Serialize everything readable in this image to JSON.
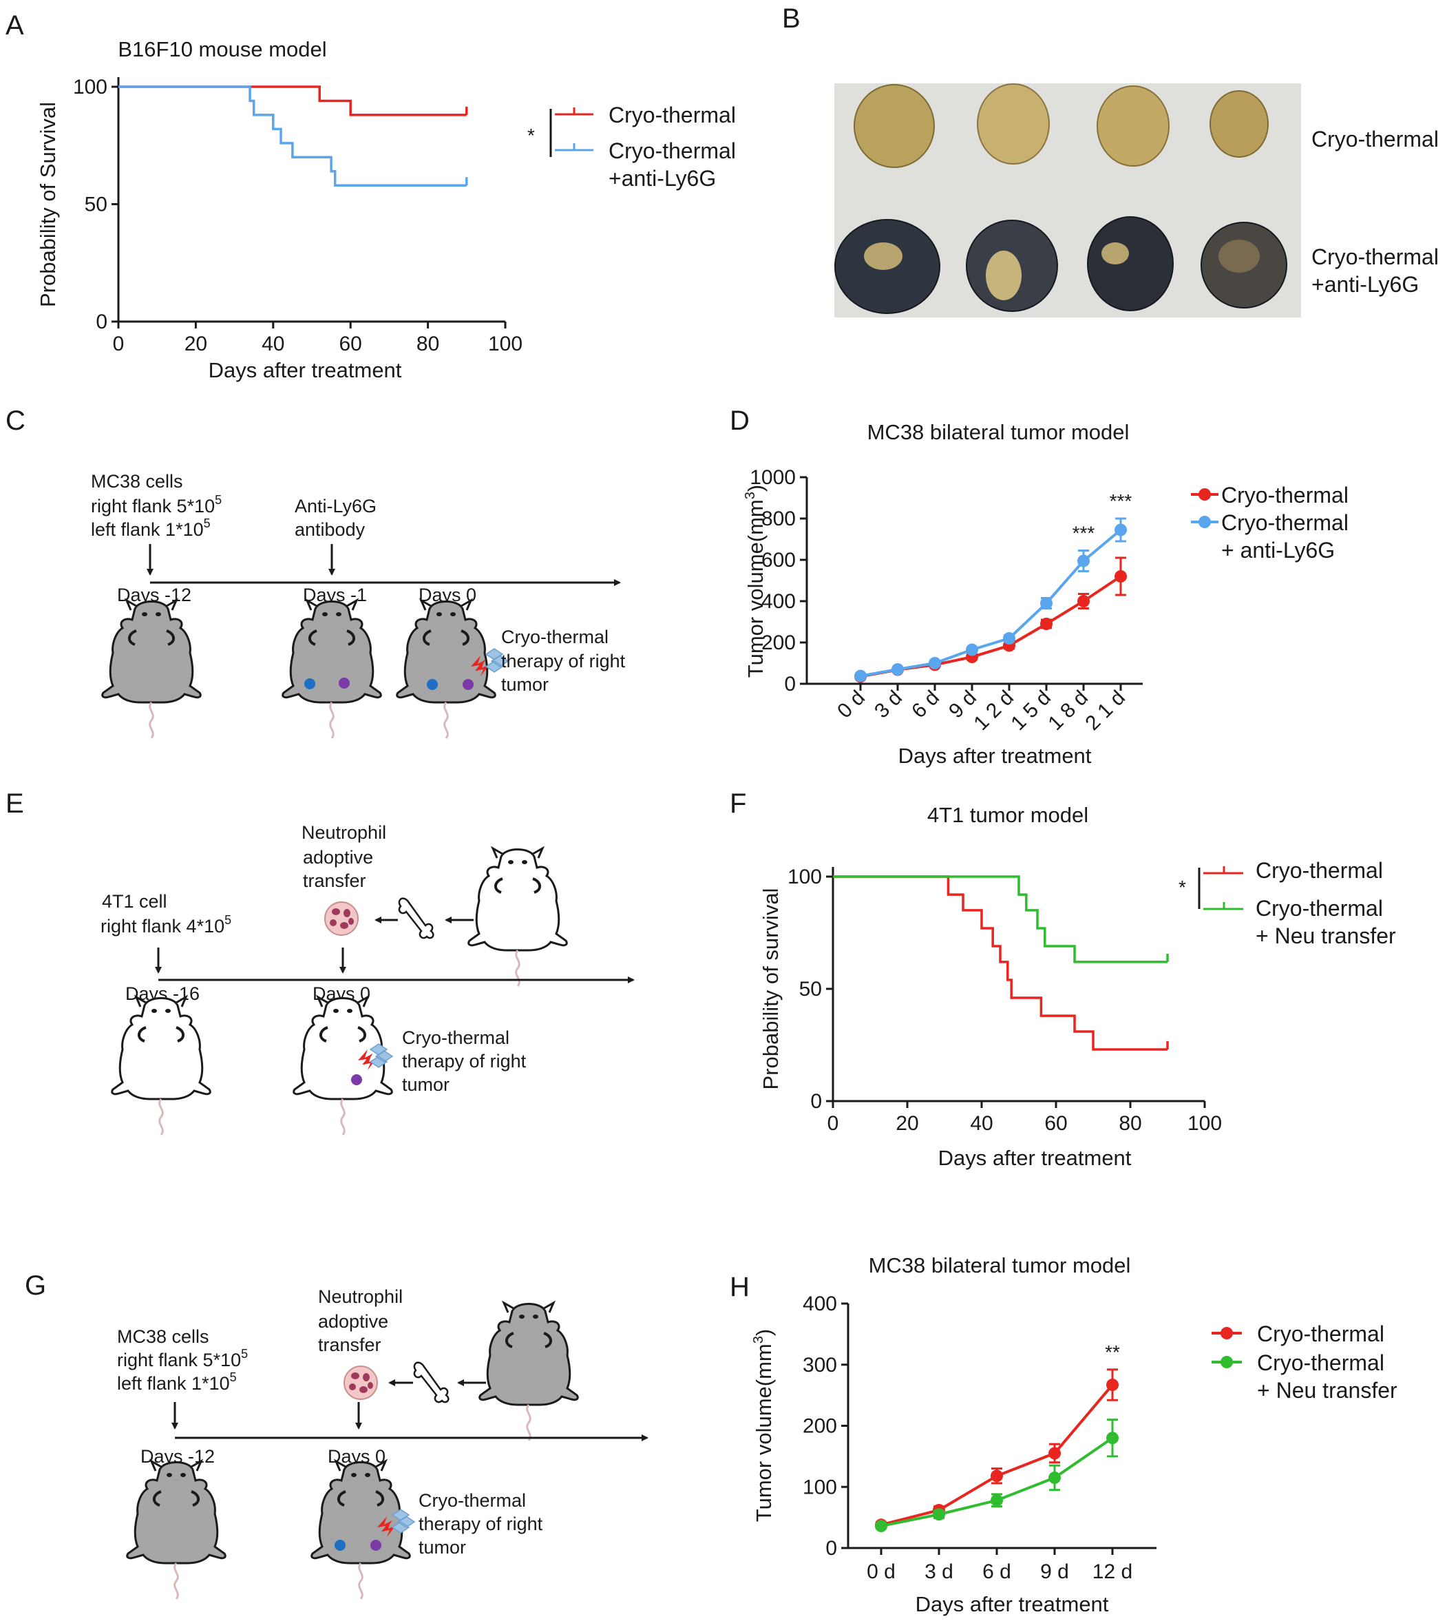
{
  "figure": {
    "panel_labels": [
      "A",
      "B",
      "C",
      "D",
      "E",
      "F",
      "G",
      "H"
    ],
    "colors": {
      "red": "#e8251e",
      "blue": "#5aa6ee",
      "green": "#2fbd2f",
      "axis": "#1a1a1a",
      "mouse_gray": "#a6a6a6",
      "tumor_blue": "#1f6fc4",
      "tumor_purple": "#7a3aa8",
      "bolt_red": "#e8251e",
      "cold_blue": "#9dc3e6",
      "neutrophil": "#f3c7c7",
      "nucleus": "#9e3a5a",
      "tail": "#d9b8b8"
    },
    "icons": [
      "mouse-icon",
      "tumor-dot-icon",
      "lightning-icon",
      "snowflake-icon",
      "neutrophil-cell-icon",
      "bone-icon",
      "arrow-icon"
    ]
  },
  "panel_b": {
    "label": "B",
    "row_labels": [
      "Cryo-thermal",
      "Cryo-thermal",
      "+anti-Ly6G"
    ]
  },
  "panel_c": {
    "label": "C",
    "step1": [
      "MC38 cells",
      "right flank 5*10",
      "5",
      "left flank 1*10",
      "5"
    ],
    "step2": [
      "Anti-Ly6G",
      "antibody"
    ],
    "timepoints": [
      "Days -12",
      "Days -1",
      "Days 0"
    ],
    "therapy": [
      "Cryo-thermal",
      "therapy of right",
      "tumor"
    ]
  },
  "panel_e": {
    "label": "E",
    "step1": [
      "4T1 cell",
      "right flank 4*10",
      "5"
    ],
    "transfer": [
      "Neutrophil",
      "adoptive",
      "transfer"
    ],
    "timepoints": [
      "Days -16",
      "Days 0"
    ],
    "therapy": [
      "Cryo-thermal",
      "therapy of right",
      "tumor"
    ]
  },
  "panel_g": {
    "label": "G",
    "step1": [
      "MC38 cells",
      "right flank 5*10",
      "5",
      "left flank 1*10",
      "5"
    ],
    "transfer": [
      "Neutrophil",
      "adoptive",
      "transfer"
    ],
    "timepoints": [
      "Days -12",
      "Days 0"
    ],
    "therapy": [
      "Cryo-thermal",
      "therapy of right",
      "tumor"
    ]
  },
  "chart_data": [
    {
      "panel": "A",
      "type": "line",
      "subtype": "kaplan-meier",
      "title": "B16F10 mouse model",
      "xlabel": "Days after treatment",
      "ylabel": "Probability of Survival",
      "xlim": [
        0,
        100
      ],
      "ylim": [
        0,
        100
      ],
      "xticks": [
        0,
        20,
        40,
        60,
        80,
        100
      ],
      "yticks": [
        0,
        50,
        100
      ],
      "significance": "*",
      "legend_position": "right",
      "series": [
        {
          "name": "Cryo-thermal",
          "legend": [
            "Cryo-thermal"
          ],
          "color": "#e8251e",
          "x": [
            0,
            52,
            52,
            60,
            60,
            90
          ],
          "y": [
            100,
            100,
            94,
            94,
            88,
            88
          ]
        },
        {
          "name": "Cryo-thermal +anti-Ly6G",
          "legend": [
            "Cryo-thermal",
            "+anti-Ly6G"
          ],
          "color": "#5aa6ee",
          "x": [
            0,
            34,
            34,
            35,
            35,
            40,
            40,
            42,
            42,
            45,
            45,
            55,
            55,
            56,
            56,
            90
          ],
          "y": [
            100,
            100,
            94,
            94,
            88,
            88,
            82,
            82,
            76,
            76,
            70,
            70,
            64,
            64,
            58,
            58
          ]
        }
      ]
    },
    {
      "panel": "D",
      "type": "line",
      "title": "MC38 bilateral tumor model",
      "xlabel": "Days after treatment",
      "ylabel": "Tumor volume(mm3)",
      "ylabel_parts": [
        "Tumor volume(mm",
        "3",
        ")"
      ],
      "categories": [
        "0 d",
        "3 d",
        "6 d",
        "9 d",
        "12 d",
        "15 d",
        "18 d",
        "21 d"
      ],
      "category_labels": [
        "0 d",
        "3 d",
        "6 d",
        "9 d",
        "1 2 d",
        "1 5 d",
        "1 8 d",
        "2 1 d"
      ],
      "ylim": [
        0,
        1000
      ],
      "yticks": [
        0,
        200,
        400,
        600,
        800,
        1000
      ],
      "annotations": [
        {
          "category": "18 d",
          "text": "***"
        },
        {
          "category": "21 d",
          "text": "***"
        }
      ],
      "legend_position": "right",
      "series": [
        {
          "name": "Cryo-thermal",
          "legend": [
            "Cryo-thermal"
          ],
          "color": "#e8251e",
          "values": [
            35,
            68,
            92,
            130,
            185,
            290,
            400,
            520
          ],
          "errors": [
            5,
            6,
            8,
            12,
            15,
            20,
            35,
            90
          ]
        },
        {
          "name": "Cryo-thermal + anti-Ly6G",
          "legend": [
            "Cryo-thermal",
            "+ anti-Ly6G"
          ],
          "color": "#5aa6ee",
          "values": [
            38,
            70,
            100,
            165,
            220,
            390,
            595,
            745
          ],
          "errors": [
            5,
            6,
            8,
            10,
            15,
            25,
            50,
            55
          ]
        }
      ]
    },
    {
      "panel": "F",
      "type": "line",
      "subtype": "kaplan-meier",
      "title": "4T1 tumor model",
      "xlabel": "Days after treatment",
      "ylabel": "Probability of survival",
      "xlim": [
        0,
        100
      ],
      "ylim": [
        0,
        100
      ],
      "xticks": [
        0,
        20,
        40,
        60,
        80,
        100
      ],
      "yticks": [
        0,
        50,
        100
      ],
      "significance": "*",
      "legend_position": "right",
      "series": [
        {
          "name": "Cryo-thermal",
          "legend": [
            "Cryo-thermal"
          ],
          "color": "#e8251e",
          "x": [
            0,
            31,
            31,
            35,
            35,
            40,
            40,
            43,
            43,
            45,
            45,
            47,
            47,
            48,
            48,
            56,
            56,
            65,
            65,
            70,
            70,
            90
          ],
          "y": [
            100,
            100,
            92,
            92,
            85,
            85,
            77,
            77,
            69,
            69,
            62,
            62,
            54,
            54,
            46,
            46,
            38,
            38,
            31,
            31,
            23,
            23
          ]
        },
        {
          "name": "Cryo-thermal + Neu transfer",
          "legend": [
            "Cryo-thermal",
            "+ Neu transfer"
          ],
          "color": "#2fbd2f",
          "x": [
            0,
            50,
            50,
            52,
            52,
            55,
            55,
            57,
            57,
            65,
            65,
            90
          ],
          "y": [
            100,
            100,
            92,
            92,
            85,
            85,
            77,
            77,
            69,
            69,
            62,
            62
          ]
        }
      ]
    },
    {
      "panel": "H",
      "type": "line",
      "title": "MC38 bilateral tumor model",
      "xlabel": "Days after treatment",
      "ylabel": "Tumor volume(mm3)",
      "ylabel_parts": [
        "Tumor volume(mm",
        "3",
        ")"
      ],
      "categories": [
        "0 d",
        "3 d",
        "6 d",
        "9 d",
        "12 d"
      ],
      "ylim": [
        0,
        400
      ],
      "yticks": [
        0,
        100,
        200,
        300,
        400
      ],
      "annotations": [
        {
          "category": "12 d",
          "text": "**"
        }
      ],
      "legend_position": "right",
      "series": [
        {
          "name": "Cryo-thermal",
          "legend": [
            "Cryo-thermal"
          ],
          "color": "#e8251e",
          "values": [
            38,
            62,
            118,
            155,
            267
          ],
          "errors": [
            4,
            6,
            12,
            15,
            25
          ]
        },
        {
          "name": "Cryo-thermal + Neu transfer",
          "legend": [
            "Cryo-thermal",
            "+ Neu transfer"
          ],
          "color": "#2fbd2f",
          "values": [
            36,
            55,
            78,
            115,
            180
          ],
          "errors": [
            4,
            6,
            10,
            20,
            30
          ]
        }
      ]
    }
  ]
}
